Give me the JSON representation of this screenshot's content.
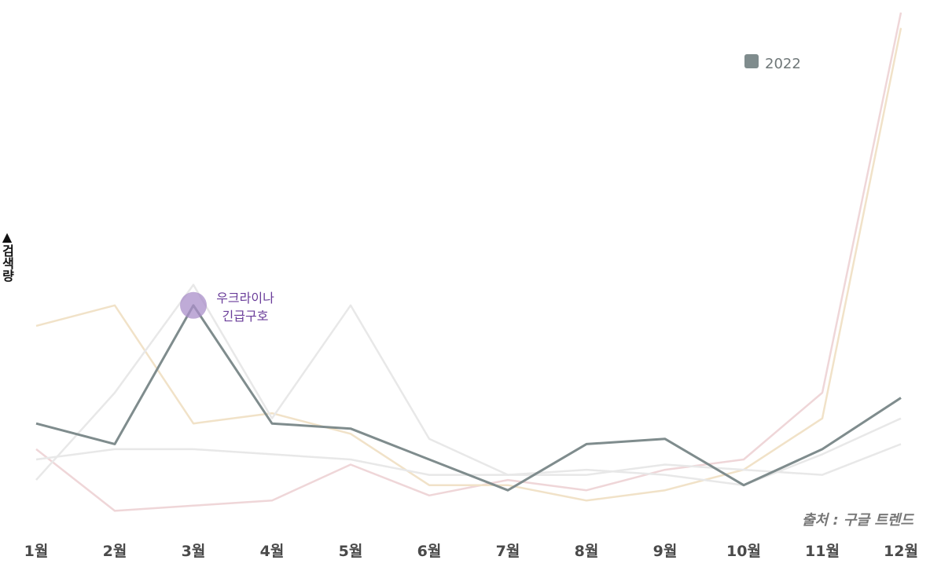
{
  "chart_data": {
    "type": "line",
    "categories": [
      "1월",
      "2월",
      "3월",
      "4월",
      "5월",
      "6월",
      "7월",
      "8월",
      "9월",
      "10월",
      "11월",
      "12월"
    ],
    "ylabel": "▲검색량",
    "ylim": [
      0,
      100
    ],
    "grid": false,
    "legend": {
      "placement": "top-right",
      "entries": [
        "2022"
      ]
    },
    "series": [
      {
        "id": "s-pink",
        "color": "#efd6d8",
        "values": [
          15,
          3,
          4,
          5,
          12,
          6,
          9,
          7,
          11,
          13,
          26,
          100
        ]
      },
      {
        "id": "s-beige",
        "color": "#f1e2c8",
        "values": [
          39,
          43,
          20,
          22,
          18,
          8,
          8,
          5,
          7,
          11,
          21,
          97
        ]
      },
      {
        "id": "s-gray-peak",
        "color": "#e8e8e8",
        "values": [
          9,
          26,
          47,
          21,
          43,
          17,
          10,
          11,
          10,
          8,
          14,
          21
        ]
      },
      {
        "id": "s-gray-flat",
        "color": "#e8e8e8",
        "values": [
          13,
          15,
          15,
          14,
          13,
          10,
          10,
          10,
          12,
          11,
          10,
          16
        ]
      },
      {
        "name": "2022",
        "id": "s-2022",
        "color": "#7f8c8d",
        "values": [
          20,
          16,
          43,
          20,
          19,
          13,
          7,
          16,
          17,
          8,
          15,
          25
        ]
      }
    ],
    "annotation": {
      "series": "2022",
      "category": "3월",
      "line1": "우크라이나",
      "line2": "긴급구호",
      "color": "#a98fc9"
    },
    "source": "출처 : 구글 트렌드"
  }
}
